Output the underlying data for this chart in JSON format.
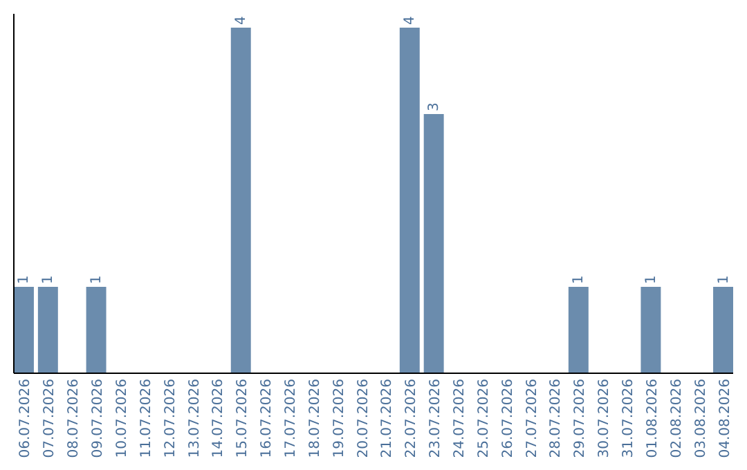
{
  "chart_data": {
    "type": "bar",
    "categories": [
      "06.07.2026",
      "07.07.2026",
      "08.07.2026",
      "09.07.2026",
      "10.07.2026",
      "11.07.2026",
      "12.07.2026",
      "13.07.2026",
      "14.07.2026",
      "15.07.2026",
      "16.07.2026",
      "17.07.2026",
      "18.07.2026",
      "19.07.2026",
      "20.07.2026",
      "21.07.2026",
      "22.07.2026",
      "23.07.2026",
      "24.07.2026",
      "25.07.2026",
      "26.07.2026",
      "27.07.2026",
      "28.07.2026",
      "29.07.2026",
      "30.07.2026",
      "31.07.2026",
      "01.08.2026",
      "02.08.2026",
      "03.08.2026",
      "04.08.2026"
    ],
    "values": [
      1,
      1,
      0,
      1,
      0,
      0,
      0,
      0,
      0,
      4,
      0,
      0,
      0,
      0,
      0,
      0,
      4,
      3,
      0,
      0,
      0,
      0,
      0,
      1,
      0,
      0,
      1,
      0,
      0,
      1
    ],
    "value_labels": [
      "1",
      "1",
      null,
      "1",
      null,
      null,
      null,
      null,
      null,
      "4",
      null,
      null,
      null,
      null,
      null,
      null,
      "4",
      "3",
      null,
      null,
      null,
      null,
      null,
      "1",
      null,
      null,
      "1",
      null,
      null,
      "1"
    ],
    "color": "#6b8cad"
  }
}
